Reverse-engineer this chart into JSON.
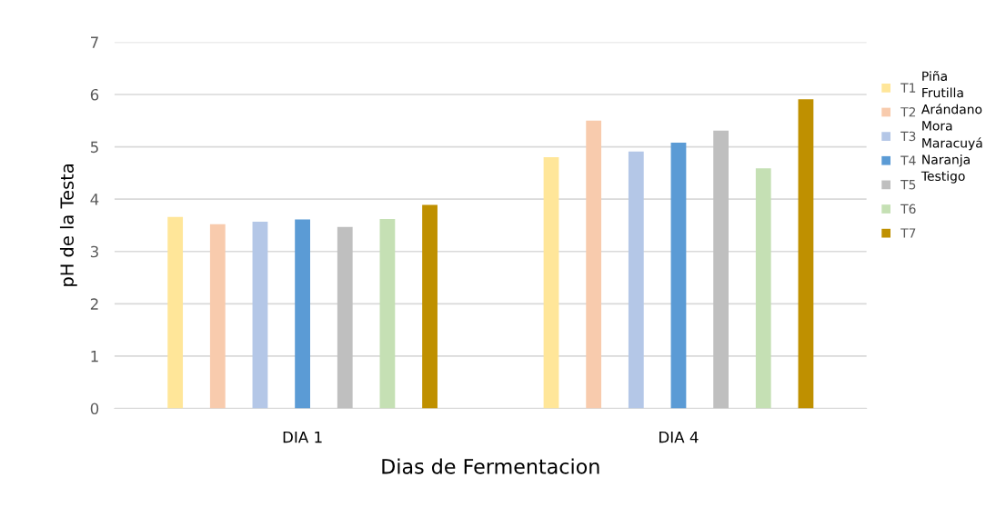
{
  "chart_data": {
    "type": "bar",
    "xlabel": "Dias de Fermentacion",
    "ylabel": "pH de la Testa",
    "categories": [
      "DIA 1",
      "DIA 4"
    ],
    "series": [
      {
        "name": "T1",
        "color": "#ffe699",
        "values": [
          3.66,
          4.8
        ]
      },
      {
        "name": "T2",
        "color": "#f8cbad",
        "values": [
          3.52,
          5.5
        ]
      },
      {
        "name": "T3",
        "color": "#b4c7e7",
        "values": [
          3.57,
          4.91
        ]
      },
      {
        "name": "T4",
        "color": "#5b9bd5",
        "values": [
          3.61,
          5.08
        ]
      },
      {
        "name": "T5",
        "color": "#bfbfbf",
        "values": [
          3.47,
          5.31
        ]
      },
      {
        "name": "T6",
        "color": "#c5e0b4",
        "values": [
          3.62,
          4.59
        ]
      },
      {
        "name": "T7",
        "color": "#bf9000",
        "values": [
          3.89,
          5.91
        ]
      }
    ],
    "annotations": [
      "Piña\nFrutilla\nArándano\nMora\nMaracuyá\nNaranja\nTestigo"
    ],
    "ylim": [
      0,
      7
    ],
    "yticks": [
      0,
      1,
      2,
      3,
      4,
      5,
      6,
      7
    ],
    "grid": "y",
    "legend": "right"
  }
}
